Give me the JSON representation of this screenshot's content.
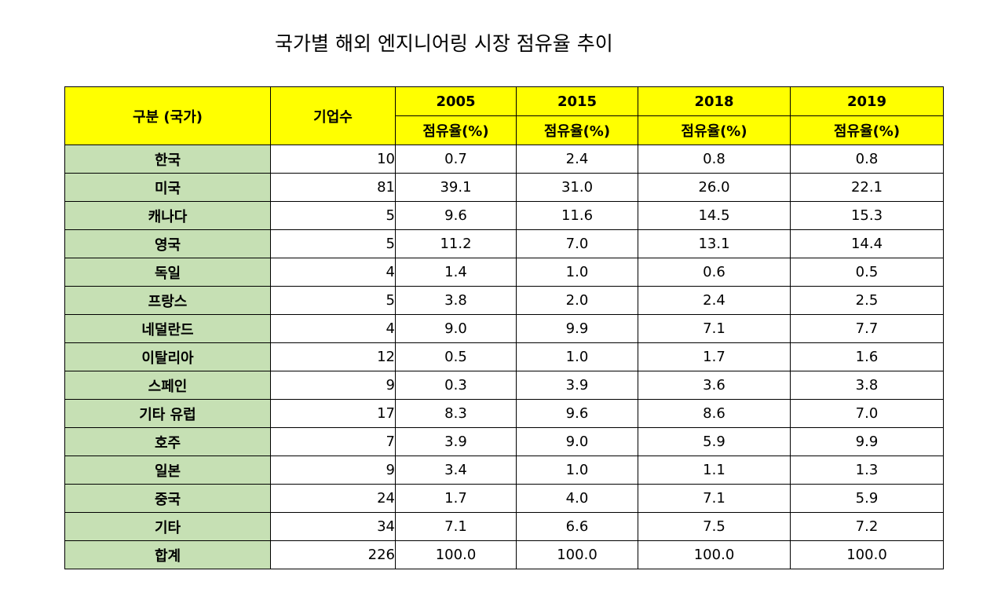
{
  "title": "국가별 해외 엔지니어링 시장 점유율 추이",
  "headers": {
    "category": "구분 (국가)",
    "companies": "기업수",
    "years": [
      "2005",
      "2015",
      "2018",
      "2019"
    ],
    "share_label": "점유율(%)"
  },
  "rows": [
    {
      "country": "한국",
      "companies": "10",
      "values": [
        "0.7",
        "2.4",
        "0.8",
        "0.8"
      ]
    },
    {
      "country": "미국",
      "companies": "81",
      "values": [
        "39.1",
        "31.0",
        "26.0",
        "22.1"
      ]
    },
    {
      "country": "캐나다",
      "companies": "5",
      "values": [
        "9.6",
        "11.6",
        "14.5",
        "15.3"
      ]
    },
    {
      "country": "영국",
      "companies": "5",
      "values": [
        "11.2",
        "7.0",
        "13.1",
        "14.4"
      ]
    },
    {
      "country": "독일",
      "companies": "4",
      "values": [
        "1.4",
        "1.0",
        "0.6",
        "0.5"
      ]
    },
    {
      "country": "프랑스",
      "companies": "5",
      "values": [
        "3.8",
        "2.0",
        "2.4",
        "2.5"
      ]
    },
    {
      "country": "네덜란드",
      "companies": "4",
      "values": [
        "9.0",
        "9.9",
        "7.1",
        "7.7"
      ]
    },
    {
      "country": "이탈리아",
      "companies": "12",
      "values": [
        "0.5",
        "1.0",
        "1.7",
        "1.6"
      ]
    },
    {
      "country": "스페인",
      "companies": "9",
      "values": [
        "0.3",
        "3.9",
        "3.6",
        "3.8"
      ]
    },
    {
      "country": "기타 유럽",
      "companies": "17",
      "values": [
        "8.3",
        "9.6",
        "8.6",
        "7.0"
      ]
    },
    {
      "country": "호주",
      "companies": "7",
      "values": [
        "3.9",
        "9.0",
        "5.9",
        "9.9"
      ]
    },
    {
      "country": "일본",
      "companies": "9",
      "values": [
        "3.4",
        "1.0",
        "1.1",
        "1.3"
      ]
    },
    {
      "country": "중국",
      "companies": "24",
      "values": [
        "1.7",
        "4.0",
        "7.1",
        "5.9"
      ]
    },
    {
      "country": "기타",
      "companies": "34",
      "values": [
        "7.1",
        "6.6",
        "7.5",
        "7.2"
      ]
    },
    {
      "country": "합계",
      "companies": "226",
      "values": [
        "100.0",
        "100.0",
        "100.0",
        "100.0"
      ]
    }
  ],
  "colors": {
    "header_bg": "#ffff00",
    "country_bg": "#c6e0b4",
    "border": "#000000"
  }
}
